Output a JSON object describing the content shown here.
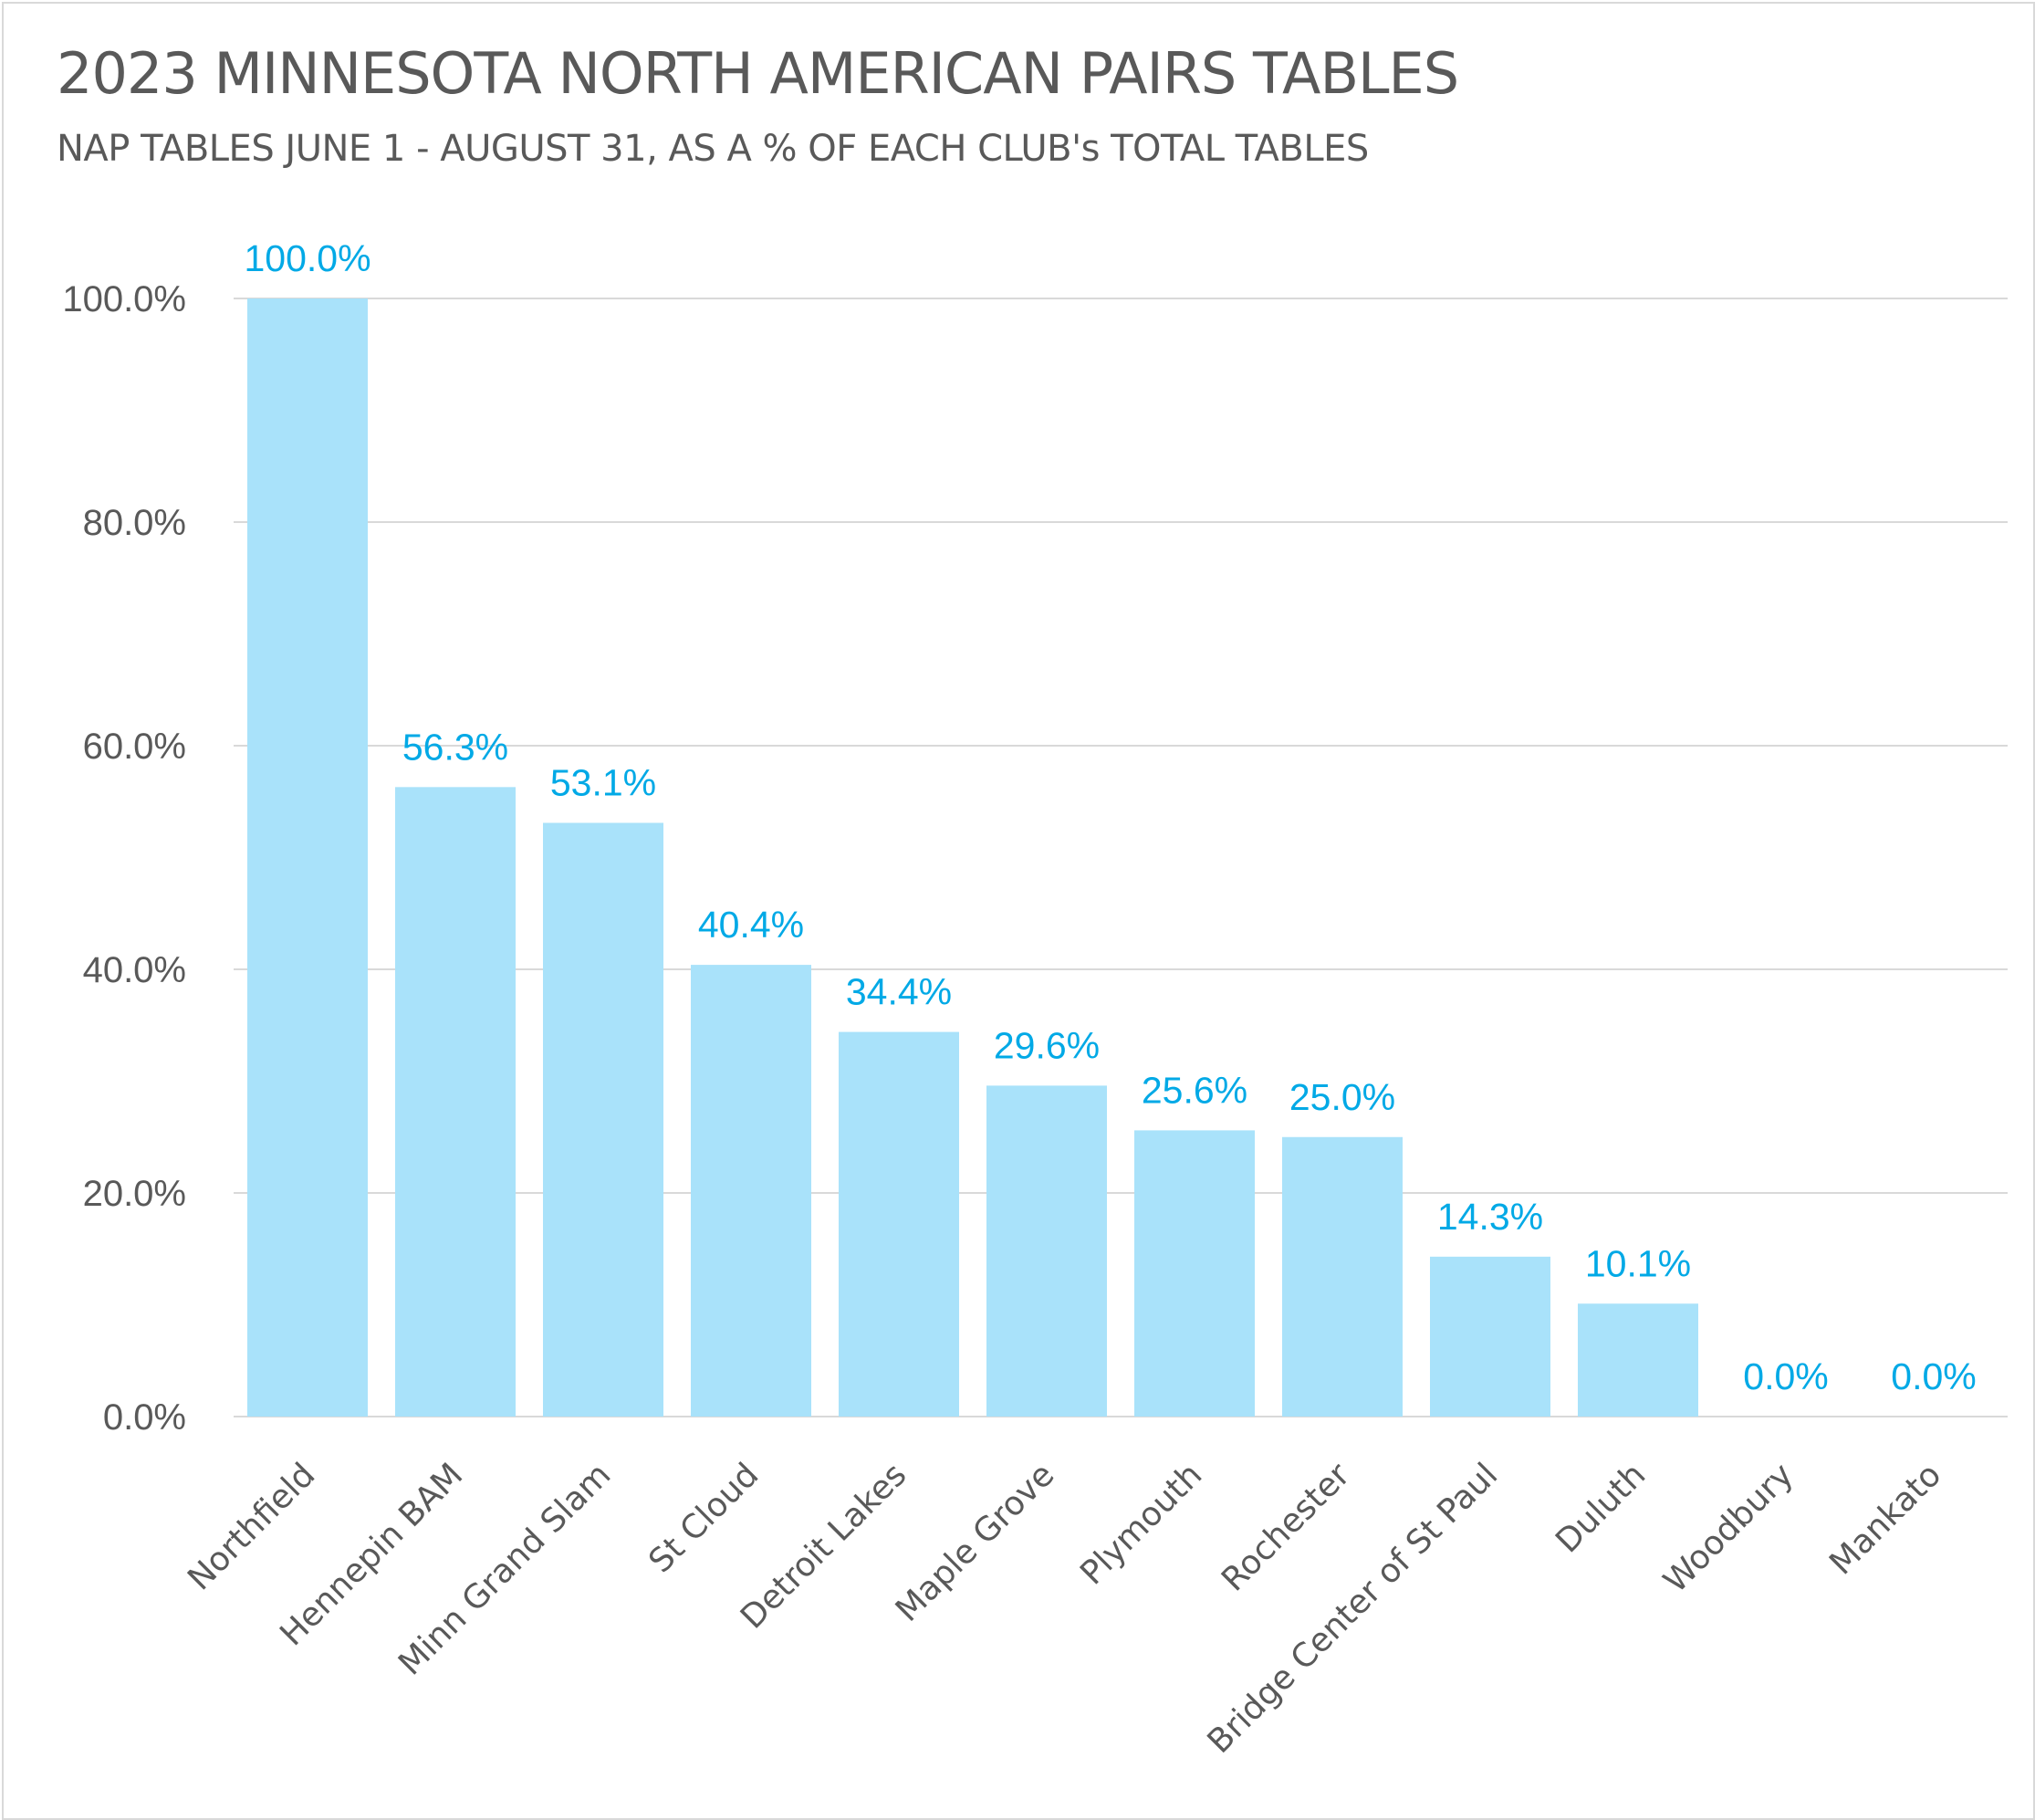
{
  "chart_data": {
    "type": "bar",
    "title": "2023 MINNESOTA NORTH AMERICAN PAIRS TABLES",
    "subtitle": "NAP TABLES JUNE 1 - AUGUST 31, AS A % OF EACH CLUB's TOTAL TABLES",
    "xlabel": "",
    "ylabel": "",
    "categories": [
      "Northfield",
      "Hennepin BAM",
      "Minn Grand Slam",
      "St Cloud",
      "Detroit Lakes",
      "Maple Grove",
      "Plymouth",
      "Rochester",
      "Bridge Center of St Paul",
      "Duluth",
      "Woodbury",
      "Mankato"
    ],
    "values": [
      100.0,
      56.3,
      53.1,
      40.4,
      34.4,
      29.6,
      25.6,
      25.0,
      14.3,
      10.1,
      0.0,
      0.0
    ],
    "data_labels": [
      "100.0%",
      "56.3%",
      "53.1%",
      "40.4%",
      "34.4%",
      "29.6%",
      "25.6%",
      "25.0%",
      "14.3%",
      "10.1%",
      "0.0%",
      "0.0%"
    ],
    "yticks": [
      0,
      20,
      40,
      60,
      80,
      100
    ],
    "ytick_labels": [
      "0.0%",
      "20.0%",
      "40.0%",
      "60.0%",
      "80.0%",
      "100.0%"
    ],
    "ylim": [
      0,
      100
    ],
    "grid": true,
    "legend": "none",
    "colors": {
      "bar": "#a9e2fa",
      "data_label": "#00a9e6",
      "gridline": "#d9d9d9",
      "text": "#595959"
    }
  }
}
